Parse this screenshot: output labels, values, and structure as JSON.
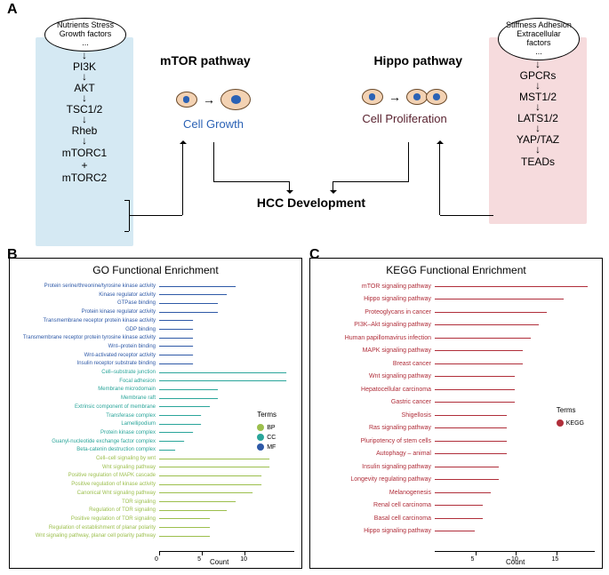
{
  "panel_labels": {
    "A": "A",
    "B": "B",
    "C": "C"
  },
  "panelA": {
    "left_pathway": {
      "title": "mTOR pathway",
      "stimulus": "Nutrients  Stress\nGrowth factors\n...",
      "nodes": [
        "PI3K",
        "AKT",
        "TSC1/2",
        "Rheb",
        "mTORC1\n+\nmTORC2"
      ],
      "role": "Cell Growth",
      "bg_color": "#d5e9f3"
    },
    "right_pathway": {
      "title": "Hippo pathway",
      "stimulus": "Stiffness  Adhesion\nExtracellular factors\n...",
      "nodes": [
        "GPCRs",
        "MST1/2",
        "LATS1/2",
        "YAP/TAZ",
        "TEADs"
      ],
      "role": "Cell Proliferation",
      "bg_color": "#f6dbdd"
    },
    "center": "HCC Development"
  },
  "colors": {
    "mf": "#2e59a7",
    "cc": "#2aa59a",
    "bp": "#9cbf4d",
    "kegg": "#b02e3a"
  },
  "chartB": {
    "title": "GO Functional Enrichment",
    "x_label": "Count",
    "x_max": 16,
    "x_ticks": [
      0,
      5,
      10
    ],
    "legend_title": "Terms",
    "legend": [
      {
        "label": "BP",
        "color": "#9cbf4d"
      },
      {
        "label": "CC",
        "color": "#2aa59a"
      },
      {
        "label": "MF",
        "color": "#2e59a7"
      }
    ],
    "rows": [
      {
        "group": "mf",
        "label": "Protein serine/threonine/tyrosine kinase activity",
        "count": 9
      },
      {
        "group": "mf",
        "label": "Kinase regulator activity",
        "count": 8
      },
      {
        "group": "mf",
        "label": "GTPase binding",
        "count": 7
      },
      {
        "group": "mf",
        "label": "Protein kinase regulator activity",
        "count": 7
      },
      {
        "group": "mf",
        "label": "Transmembrane receptor protein kinase activity",
        "count": 4
      },
      {
        "group": "mf",
        "label": "GDP binding",
        "count": 4
      },
      {
        "group": "mf",
        "label": "Transmembrane receptor protein tyrosine kinase activity",
        "count": 4
      },
      {
        "group": "mf",
        "label": "Wnt–protein binding",
        "count": 4
      },
      {
        "group": "mf",
        "label": "Wnt-activated receptor activity",
        "count": 4
      },
      {
        "group": "mf",
        "label": "Insulin receptor substrate binding",
        "count": 4
      },
      {
        "group": "cc",
        "label": "Cell–substrate junction",
        "count": 15
      },
      {
        "group": "cc",
        "label": "Focal adhesion",
        "count": 15
      },
      {
        "group": "cc",
        "label": "Membrane microdomain",
        "count": 7
      },
      {
        "group": "cc",
        "label": "Membrane raft",
        "count": 7
      },
      {
        "group": "cc",
        "label": "Extrinsic component of membrane",
        "count": 6
      },
      {
        "group": "cc",
        "label": "Transferase complex",
        "count": 5
      },
      {
        "group": "cc",
        "label": "Lamellipodium",
        "count": 5
      },
      {
        "group": "cc",
        "label": "Protein kinase complex",
        "count": 4
      },
      {
        "group": "cc",
        "label": "Guanyl-nucleotide exchange factor complex",
        "count": 3
      },
      {
        "group": "cc",
        "label": "Beta-catenin destruction complex",
        "count": 2
      },
      {
        "group": "bp",
        "label": "Cell–cell signaling by wnt",
        "count": 13
      },
      {
        "group": "bp",
        "label": "Wnt signaling pathway",
        "count": 13
      },
      {
        "group": "bp",
        "label": "Positive regulation of MAPK cascade",
        "count": 12
      },
      {
        "group": "bp",
        "label": "Positive regulation of kinase activity",
        "count": 12
      },
      {
        "group": "bp",
        "label": "Canonical Wnt signaling pathway",
        "count": 11
      },
      {
        "group": "bp",
        "label": "TOR signaling",
        "count": 9
      },
      {
        "group": "bp",
        "label": "Regulation of TOR signaling",
        "count": 8
      },
      {
        "group": "bp",
        "label": "Positive regulation of TOR signaling",
        "count": 6
      },
      {
        "group": "bp",
        "label": "Regulation of establishment of planar polarity",
        "count": 6
      },
      {
        "group": "bp",
        "label": "Wnt signaling pathway, planar cell polarity pathway",
        "count": 6
      }
    ]
  },
  "chartC": {
    "title": "KEGG Functional Enrichment",
    "x_label": "Count",
    "x_max": 20,
    "x_ticks": [
      5,
      10,
      15
    ],
    "legend_title": "Terms",
    "legend": [
      {
        "label": "KEGG",
        "color": "#b02e3a"
      }
    ],
    "rows": [
      {
        "label": "mTOR signaling pathway",
        "count": 19
      },
      {
        "label": "Hippo signaling pathway",
        "count": 16
      },
      {
        "label": "Proteoglycans in cancer",
        "count": 14
      },
      {
        "label": "PI3K–Akt signaling pathway",
        "count": 13
      },
      {
        "label": "Human papillomavirus infection",
        "count": 12
      },
      {
        "label": "MAPK signaling pathway",
        "count": 11
      },
      {
        "label": "Breast cancer",
        "count": 11
      },
      {
        "label": "Wnt signaling pathway",
        "count": 10
      },
      {
        "label": "Hepatocellular carcinoma",
        "count": 10
      },
      {
        "label": "Gastric cancer",
        "count": 10
      },
      {
        "label": "Shigellosis",
        "count": 9
      },
      {
        "label": "Ras signaling pathway",
        "count": 9
      },
      {
        "label": "Pluripotency of stem cells",
        "count": 9
      },
      {
        "label": "Autophagy – animal",
        "count": 9
      },
      {
        "label": "Insulin signaling pathway",
        "count": 8
      },
      {
        "label": "Longevity regulating pathway",
        "count": 8
      },
      {
        "label": "Melanogenesis",
        "count": 7
      },
      {
        "label": "Renal cell carcinoma",
        "count": 6
      },
      {
        "label": "Basal cell carcinoma",
        "count": 6
      },
      {
        "label": "Hippo signaling pathway",
        "count": 5
      }
    ]
  }
}
